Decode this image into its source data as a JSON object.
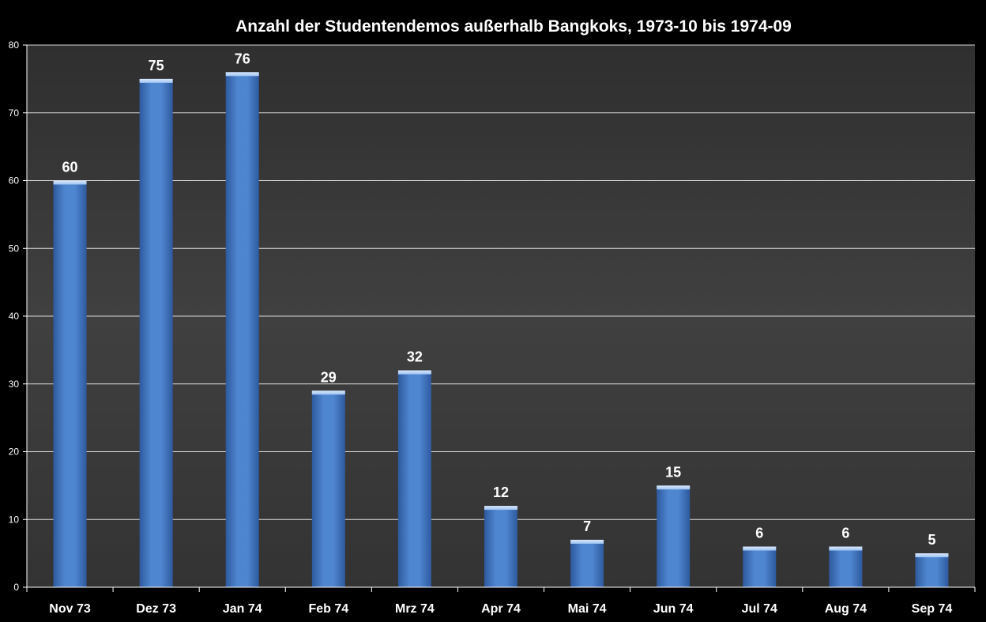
{
  "chart_data": {
    "type": "bar",
    "title": "Anzahl der Studentendemos außerhalb Bangkoks, 1973-10 bis 1974-09",
    "xlabel": "",
    "ylabel": "",
    "categories": [
      "Nov 73",
      "Dez 73",
      "Jan 74",
      "Feb 74",
      "Mrz 74",
      "Apr 74",
      "Mai 74",
      "Jun 74",
      "Jul 74",
      "Aug 74",
      "Sep 74"
    ],
    "values": [
      60,
      75,
      76,
      29,
      32,
      12,
      7,
      15,
      6,
      6,
      5
    ],
    "data_labels": [
      "60",
      "75",
      "76",
      "29",
      "32",
      "12",
      "7",
      "15",
      "6",
      "6",
      "5"
    ],
    "ylim": [
      0,
      80
    ],
    "yticks": [
      0,
      10,
      20,
      30,
      40,
      50,
      60,
      70,
      80
    ],
    "ytick_labels": [
      "0",
      "10",
      "20",
      "30",
      "40",
      "50",
      "60",
      "70",
      "80"
    ],
    "grid": true,
    "legend": "none",
    "colors": {
      "page_background": "#000000",
      "plot_background": "#3c3c3c",
      "bar": "#4f86d0",
      "bar_highlight": "#9cc2f2",
      "bar_shadow": "#2e5a9e",
      "gridline": "#d8d8d8",
      "text": "#ffffff"
    }
  }
}
